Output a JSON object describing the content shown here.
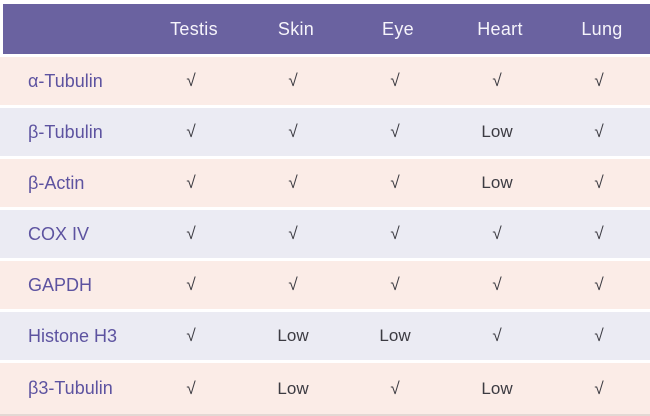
{
  "chart_data": {
    "type": "table",
    "columns": [
      "Testis",
      "Skin",
      "Eye",
      "Heart",
      "Lung"
    ],
    "rows": [
      {
        "label": "α-Tubulin",
        "values": [
          "√",
          "√",
          "√",
          "√",
          "√"
        ]
      },
      {
        "label": "β-Tubulin",
        "values": [
          "√",
          "√",
          "√",
          "Low",
          "√"
        ]
      },
      {
        "label": "β-Actin",
        "values": [
          "√",
          "√",
          "√",
          "Low",
          "√"
        ]
      },
      {
        "label": "COX IV",
        "values": [
          "√",
          "√",
          "√",
          "√",
          "√"
        ]
      },
      {
        "label": "GAPDH",
        "values": [
          "√",
          "√",
          "√",
          "√",
          "√"
        ]
      },
      {
        "label": "Histone H3",
        "values": [
          "√",
          "Low",
          "Low",
          "√",
          "√"
        ]
      },
      {
        "label": "β3-Tubulin",
        "values": [
          "√",
          "Low",
          "√",
          "Low",
          "√"
        ]
      }
    ],
    "symbols": {
      "present": "√",
      "low": "Low"
    },
    "layout": {
      "header_position": "top",
      "row_striping": [
        "pink",
        "lavender"
      ]
    }
  },
  "colors": {
    "header_bg": "#6a62a0",
    "header_text": "#f6f4fb",
    "row_pink": "#fbece7",
    "row_lavender": "#ebebf3",
    "label_text": "#5d53a0",
    "cell_text": "#3c3b42"
  }
}
